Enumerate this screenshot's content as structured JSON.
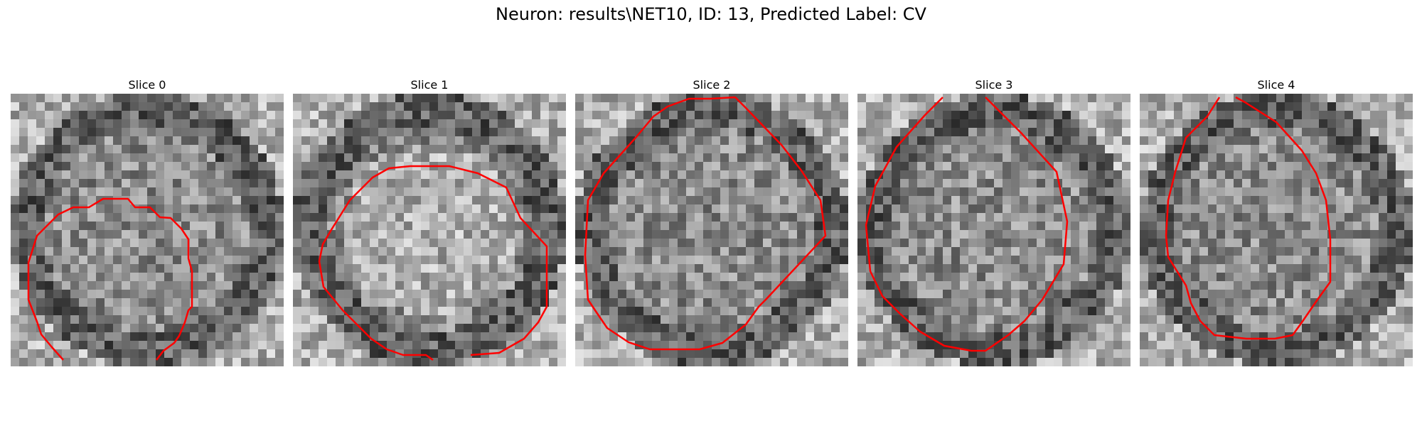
{
  "title": "Neuron: results\\NET10, ID: 13, Predicted Label: CV",
  "colors": {
    "contour": "#ff0000",
    "background": "#ffffff"
  },
  "panels": [
    {
      "label": "Slice 0",
      "seed": 11
    },
    {
      "label": "Slice 1",
      "seed": 23
    },
    {
      "label": "Slice 2",
      "seed": 37
    },
    {
      "label": "Slice 3",
      "seed": 41
    },
    {
      "label": "Slice 4",
      "seed": 53
    }
  ]
}
